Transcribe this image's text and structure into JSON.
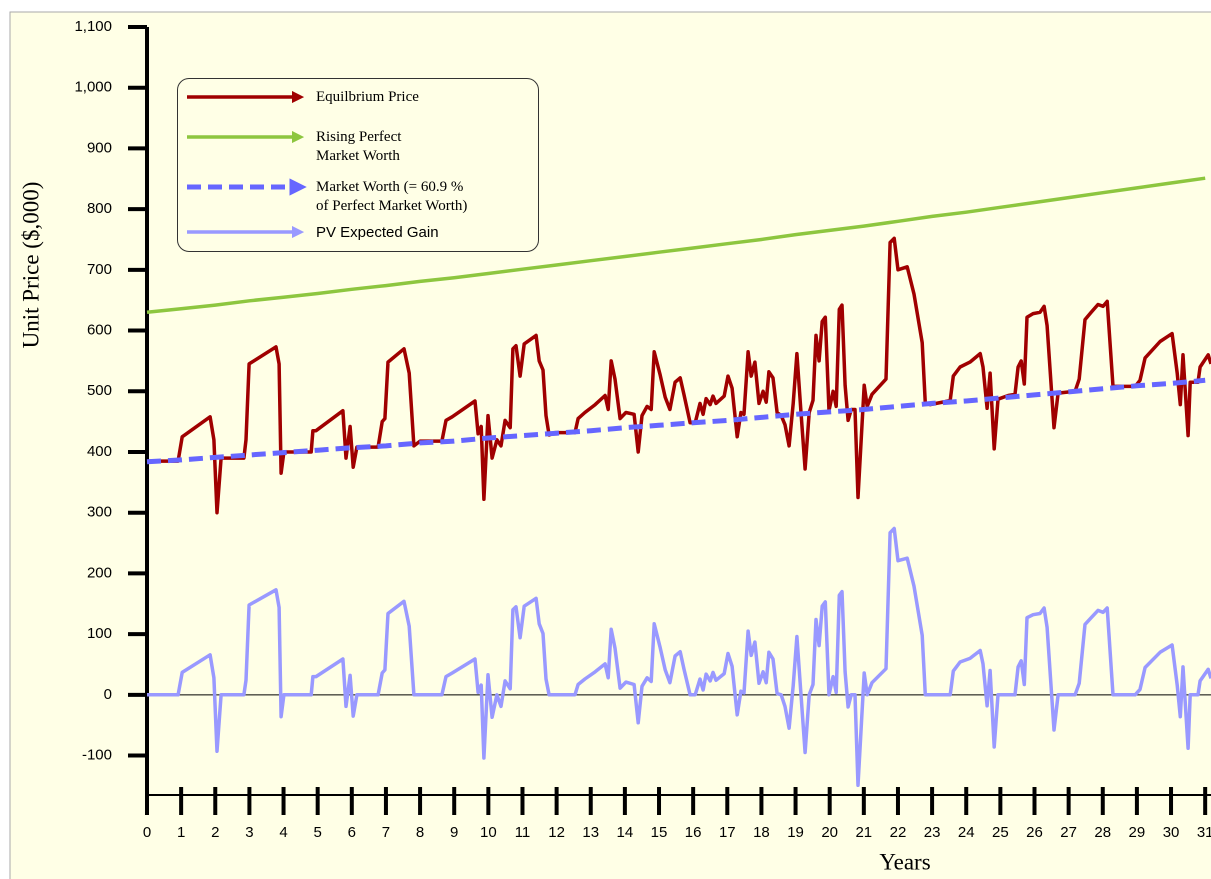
{
  "chart_data": {
    "type": "line",
    "x_label": "Years",
    "y_label": "Unit Price ($,000)",
    "xlim": [
      0,
      31.2
    ],
    "ylim": [
      -165,
      1100
    ],
    "xticks": [
      0,
      1,
      2,
      3,
      4,
      5,
      6,
      7,
      8,
      9,
      10,
      11,
      12,
      13,
      14,
      15,
      16,
      17,
      18,
      19,
      20,
      21,
      22,
      23,
      24,
      25,
      26,
      27,
      28,
      29,
      30,
      31
    ],
    "yticks": [
      -100,
      0,
      100,
      200,
      300,
      400,
      500,
      600,
      700,
      800,
      900,
      {
        "value": 1000,
        "label": "1,000"
      },
      {
        "value": 1100,
        "label": "1,100"
      }
    ],
    "legend": "upper left",
    "series": [
      {
        "name": "Equilbrium Price",
        "color": "#A00000",
        "dash": false,
        "x": [
          0,
          0.91,
          1.03,
          1.85,
          1.96,
          2.05,
          2.17,
          2.84,
          2.9,
          2.99,
          3.78,
          3.87,
          3.93,
          4.01,
          4.81,
          4.86,
          4.95,
          5.74,
          5.83,
          5.95,
          6.04,
          6.15,
          6.77,
          6.89,
          6.97,
          7.06,
          7.53,
          7.68,
          7.82,
          8,
          8.64,
          8.76,
          8.94,
          9.61,
          9.7,
          9.79,
          9.87,
          9.99,
          10.11,
          10.25,
          10.37,
          10.49,
          10.64,
          10.72,
          10.81,
          10.93,
          11.05,
          11.4,
          11.49,
          11.6,
          11.69,
          11.78,
          11.95,
          12.54,
          12.63,
          12.83,
          13.13,
          13.42,
          13.51,
          13.6,
          13.71,
          13.86,
          14.03,
          14.27,
          14.39,
          14.5,
          14.65,
          14.77,
          14.86,
          15.03,
          15.18,
          15.32,
          15.47,
          15.62,
          15.73,
          15.91,
          16.06,
          16.2,
          16.29,
          16.38,
          16.5,
          16.58,
          16.67,
          16.91,
          17.02,
          17.14,
          17.29,
          17.4,
          17.49,
          17.61,
          17.7,
          17.81,
          17.93,
          18.05,
          18.14,
          18.22,
          18.34,
          18.46,
          18.58,
          18.69,
          18.81,
          18.93,
          19.04,
          19.16,
          19.28,
          19.4,
          19.51,
          19.6,
          19.69,
          19.78,
          19.87,
          19.98,
          20.1,
          20.19,
          20.28,
          20.36,
          20.45,
          20.54,
          20.63,
          20.74,
          20.83,
          21.01,
          21.1,
          21.24,
          21.65,
          21.77,
          21.89,
          22,
          22.27,
          22.47,
          22.71,
          22.8,
          22.94,
          23.38,
          23.53,
          23.62,
          23.82,
          24.11,
          24.41,
          24.49,
          24.61,
          24.7,
          24.82,
          24.93,
          25.23,
          25.43,
          25.52,
          25.61,
          25.7,
          25.78,
          25.96,
          26.16,
          26.28,
          26.37,
          26.57,
          26.69,
          27.19,
          27.31,
          27.48,
          27.66,
          27.86,
          28.01,
          28.13,
          28.3,
          28.95,
          29.09,
          29.24,
          29.68,
          30.03,
          30.18,
          30.27,
          30.35,
          30.5,
          30.56,
          30.79,
          30.85,
          31.09,
          31.17
        ],
        "values": [
          385,
          385,
          425,
          458,
          420,
          300,
          390,
          390,
          420,
          545,
          573,
          545,
          365,
          400,
          400,
          435,
          435,
          468,
          390,
          442,
          375,
          408,
          408,
          450,
          455,
          548,
          570,
          530,
          410,
          418,
          418,
          452,
          458,
          484,
          430,
          442,
          322,
          460,
          390,
          420,
          410,
          452,
          440,
          570,
          575,
          525,
          578,
          592,
          550,
          535,
          460,
          428,
          432,
          432,
          455,
          465,
          478,
          493,
          470,
          550,
          520,
          455,
          465,
          462,
          400,
          460,
          475,
          470,
          565,
          528,
          490,
          470,
          515,
          522,
          495,
          448,
          448,
          480,
          462,
          488,
          478,
          492,
          480,
          492,
          525,
          505,
          425,
          465,
          462,
          565,
          525,
          548,
          480,
          500,
          482,
          532,
          522,
          465,
          460,
          445,
          410,
          480,
          562,
          465,
          372,
          465,
          485,
          592,
          550,
          615,
          622,
          468,
          500,
          475,
          635,
          642,
          510,
          452,
          470,
          470,
          325,
          510,
          475,
          495,
          520,
          745,
          752,
          700,
          705,
          660,
          580,
          480,
          478,
          483,
          485,
          525,
          540,
          548,
          562,
          540,
          472,
          530,
          405,
          487,
          493,
          495,
          540,
          550,
          512,
          622,
          628,
          630,
          640,
          608,
          440,
          497,
          500,
          520,
          618,
          630,
          643,
          640,
          648,
          508,
          508,
          518,
          555,
          582,
          595,
          530,
          478,
          560,
          427,
          515,
          515,
          540,
          560,
          545
        ]
      },
      {
        "name": "Rising Perfect\nMarket Worth",
        "color": "#8DC63F",
        "dash": false,
        "x": [
          0,
          1,
          2,
          3,
          4,
          5,
          6,
          7,
          8,
          9,
          10,
          11,
          12,
          13,
          14,
          15,
          16,
          17,
          18,
          19,
          20,
          21,
          22,
          23,
          24,
          25,
          26,
          27,
          28,
          29,
          30,
          31
        ],
        "values": [
          630,
          636,
          642,
          649,
          655,
          661,
          668,
          674,
          681,
          687,
          694,
          701,
          708,
          715,
          722,
          729,
          736,
          743,
          750,
          758,
          765,
          772,
          780,
          788,
          795,
          803,
          811,
          819,
          827,
          835,
          843,
          851
        ]
      },
      {
        "name": "Market Worth (= 60.9 %\nof Perfect Market Worth)",
        "color": "#6666FF",
        "dash": true,
        "x": [
          0,
          1,
          2,
          3,
          4,
          5,
          6,
          7,
          8,
          9,
          10,
          11,
          12,
          13,
          14,
          15,
          16,
          17,
          18,
          19,
          20,
          21,
          22,
          23,
          24,
          25,
          26,
          27,
          28,
          29,
          30,
          31
        ],
        "values": [
          384,
          387,
          391,
          395,
          399,
          403,
          407,
          410,
          415,
          418,
          423,
          427,
          431,
          435,
          440,
          444,
          448,
          452,
          457,
          462,
          466,
          470,
          475,
          480,
          484,
          489,
          494,
          499,
          504,
          509,
          513,
          518
        ]
      },
      {
        "name": "PV Expected Gain",
        "color": "#9999FF",
        "dash": false,
        "x": [
          0,
          0.91,
          1.03,
          1.85,
          1.96,
          2.05,
          2.17,
          2.84,
          2.9,
          2.99,
          3.78,
          3.87,
          3.93,
          4.01,
          4.81,
          4.86,
          4.95,
          5.74,
          5.83,
          5.95,
          6.04,
          6.15,
          6.77,
          6.89,
          6.97,
          7.06,
          7.53,
          7.68,
          7.82,
          8,
          8.64,
          8.76,
          8.94,
          9.61,
          9.7,
          9.79,
          9.87,
          9.99,
          10.11,
          10.25,
          10.37,
          10.49,
          10.64,
          10.72,
          10.81,
          10.93,
          11.05,
          11.4,
          11.49,
          11.6,
          11.69,
          11.78,
          11.95,
          12.54,
          12.63,
          12.83,
          13.13,
          13.42,
          13.51,
          13.6,
          13.71,
          13.86,
          14.03,
          14.27,
          14.39,
          14.5,
          14.65,
          14.77,
          14.86,
          15.03,
          15.18,
          15.32,
          15.47,
          15.62,
          15.73,
          15.91,
          16.06,
          16.2,
          16.29,
          16.38,
          16.5,
          16.58,
          16.67,
          16.91,
          17.02,
          17.14,
          17.29,
          17.4,
          17.49,
          17.61,
          17.7,
          17.81,
          17.93,
          18.05,
          18.14,
          18.22,
          18.34,
          18.46,
          18.58,
          18.69,
          18.81,
          18.93,
          19.04,
          19.16,
          19.28,
          19.4,
          19.51,
          19.6,
          19.69,
          19.78,
          19.87,
          19.98,
          20.1,
          20.19,
          20.28,
          20.36,
          20.45,
          20.54,
          20.63,
          20.74,
          20.83,
          21.01,
          21.1,
          21.24,
          21.65,
          21.77,
          21.89,
          22,
          22.27,
          22.47,
          22.71,
          22.8,
          22.94,
          23.38,
          23.53,
          23.62,
          23.82,
          24.11,
          24.41,
          24.49,
          24.61,
          24.7,
          24.82,
          24.93,
          25.23,
          25.43,
          25.52,
          25.61,
          25.7,
          25.78,
          25.96,
          26.16,
          26.28,
          26.37,
          26.57,
          26.69,
          27.19,
          27.31,
          27.48,
          27.66,
          27.86,
          28.01,
          28.13,
          28.3,
          28.95,
          29.09,
          29.24,
          29.68,
          30.03,
          30.18,
          30.27,
          30.35,
          30.5,
          30.56,
          30.79,
          30.85,
          31.09,
          31.17
        ],
        "values": [
          0,
          0,
          37,
          66,
          28,
          -93,
          0,
          0,
          24,
          148,
          173,
          144,
          -36,
          0,
          0,
          30,
          30,
          59,
          -19,
          32,
          -35,
          0,
          0,
          36,
          41,
          134,
          154,
          113,
          0,
          0,
          0,
          30,
          36,
          59,
          4,
          16,
          -104,
          33,
          -37,
          0,
          -19,
          23,
          10,
          140,
          145,
          94,
          146,
          159,
          117,
          101,
          26,
          0,
          0,
          0,
          17,
          26,
          38,
          51,
          28,
          108,
          77,
          11,
          21,
          17,
          -46,
          14,
          28,
          22,
          117,
          79,
          41,
          20,
          64,
          71,
          43,
          0,
          0,
          26,
          8,
          34,
          23,
          37,
          24,
          35,
          68,
          47,
          -33,
          6,
          3,
          105,
          65,
          87,
          19,
          38,
          20,
          70,
          59,
          2,
          0,
          -19,
          -55,
          15,
          96,
          0,
          -95,
          0,
          17,
          124,
          81,
          146,
          153,
          0,
          30,
          4,
          164,
          170,
          38,
          -20,
          0,
          0,
          -149,
          36,
          0,
          20,
          43,
          267,
          274,
          221,
          225,
          179,
          98,
          0,
          0,
          0,
          0,
          39,
          54,
          60,
          73,
          51,
          -18,
          40,
          -86,
          0,
          0,
          0,
          46,
          56,
          17,
          127,
          132,
          134,
          143,
          111,
          -58,
          0,
          0,
          19,
          116,
          127,
          139,
          136,
          143,
          0,
          0,
          9,
          45,
          70,
          82,
          16,
          -36,
          46,
          -88,
          0,
          0,
          23,
          42,
          27
        ]
      }
    ]
  }
}
